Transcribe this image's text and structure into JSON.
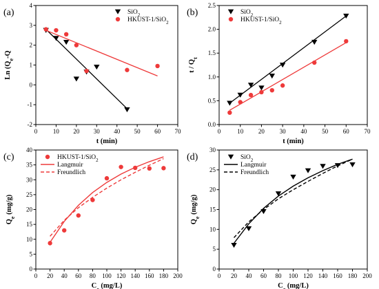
{
  "chart_data": [
    {
      "panel_label": "(a)",
      "type": "scatter",
      "xlabel": "t (min)",
      "ylabel": "Ln (Qe-Qt)",
      "ylabel_parts": [
        "Ln (Q",
        "e",
        "-Q",
        "t",
        ")"
      ],
      "xlim": [
        0,
        70
      ],
      "ylim": [
        -2,
        4
      ],
      "xticks": [
        0,
        10,
        20,
        30,
        40,
        50,
        60,
        70
      ],
      "yticks": [
        -2,
        -1,
        0,
        1,
        2,
        3,
        4
      ],
      "legend_position": "top-right",
      "series": [
        {
          "name": "SiO2",
          "name_parts": [
            "SiO",
            "2",
            ""
          ],
          "marker": "triangle-down",
          "color": "#000000",
          "x": [
            5,
            10,
            15,
            20,
            25,
            30,
            45
          ],
          "y": [
            2.75,
            2.35,
            2.15,
            0.3,
            0.65,
            0.9,
            -1.25
          ],
          "fit": [
            [
              5,
              2.8
            ],
            [
              45,
              -1.2
            ]
          ]
        },
        {
          "name": "HKUST-1/SiO2",
          "name_parts": [
            "HKUST-1/SiO",
            "2",
            ""
          ],
          "marker": "circle",
          "color": "#ee3a3a",
          "x": [
            5,
            10,
            15,
            20,
            25,
            45,
            60
          ],
          "y": [
            2.8,
            2.75,
            2.55,
            2.0,
            0.7,
            0.75,
            0.95
          ],
          "fit": [
            [
              5,
              2.75
            ],
            [
              60,
              0.45
            ]
          ]
        }
      ]
    },
    {
      "panel_label": "(b)",
      "type": "scatter",
      "xlabel": "t (min)",
      "ylabel": "t / Qt",
      "ylabel_parts": [
        "t / Q",
        "t",
        ""
      ],
      "xlim": [
        0,
        70
      ],
      "ylim": [
        0,
        2.5
      ],
      "xticks": [
        0,
        10,
        20,
        30,
        40,
        50,
        60,
        70
      ],
      "yticks": [
        0.0,
        0.5,
        1.0,
        1.5,
        2.0,
        2.5
      ],
      "ytick_labels": [
        "0.0",
        "0.5",
        "1.0",
        "1.5",
        "2.0",
        "2.5"
      ],
      "legend_position": "top-left",
      "series": [
        {
          "name": "SiO2",
          "name_parts": [
            "SiO",
            "2",
            ""
          ],
          "marker": "triangle-down",
          "color": "#000000",
          "x": [
            5,
            10,
            15,
            20,
            25,
            30,
            45,
            60
          ],
          "y": [
            0.45,
            0.62,
            0.83,
            0.77,
            1.02,
            1.25,
            1.73,
            2.28
          ],
          "fit": [
            [
              5,
              0.45
            ],
            [
              60,
              2.28
            ]
          ]
        },
        {
          "name": "HKUST-1/SiO2",
          "name_parts": [
            "HKUST-1/SiO",
            "2",
            ""
          ],
          "marker": "circle",
          "color": "#ee3a3a",
          "x": [
            5,
            10,
            15,
            20,
            25,
            30,
            45,
            60
          ],
          "y": [
            0.25,
            0.47,
            0.62,
            0.68,
            0.72,
            0.82,
            1.3,
            1.75
          ],
          "fit": [
            [
              5,
              0.3
            ],
            [
              60,
              1.72
            ]
          ]
        }
      ]
    },
    {
      "panel_label": "(c)",
      "type": "scatter",
      "xlabel": "Ce (mg/L)",
      "xlabel_parts": [
        "C",
        "e",
        " (mg/L)"
      ],
      "ylabel": "Qe (mg/g)",
      "ylabel_parts": [
        "Q",
        "e",
        " (mg/g)"
      ],
      "xlim": [
        0,
        200
      ],
      "ylim": [
        0,
        40
      ],
      "xticks": [
        0,
        20,
        40,
        60,
        80,
        100,
        120,
        140,
        160,
        180,
        200
      ],
      "yticks": [
        0,
        5,
        10,
        15,
        20,
        25,
        30,
        35,
        40
      ],
      "legend_position": "top-left",
      "series": [
        {
          "name": "HKUST-1/SiO2",
          "name_parts": [
            "HKUST-1/SiO",
            "2",
            ""
          ],
          "marker": "circle",
          "color": "#ee3a3a",
          "x": [
            20,
            40,
            60,
            80,
            100,
            120,
            140,
            160,
            180
          ],
          "y": [
            8.7,
            13.0,
            18.0,
            23.2,
            30.5,
            34.3,
            34.0,
            33.8,
            33.9
          ]
        },
        {
          "name": "Langmuir",
          "line": "solid",
          "color": "#ee3a3a",
          "x": [
            20,
            40,
            60,
            80,
            100,
            120,
            140,
            160,
            180
          ],
          "y": [
            9.0,
            16.0,
            21.4,
            25.7,
            29.1,
            31.9,
            34.2,
            36.1,
            37.7
          ]
        },
        {
          "name": "Freundlich",
          "line": "dashed",
          "color": "#ee3a3a",
          "x": [
            20,
            40,
            60,
            80,
            100,
            120,
            140,
            160,
            180
          ],
          "y": [
            11.0,
            16.4,
            20.6,
            24.1,
            27.2,
            30.0,
            32.5,
            34.9,
            37.1
          ]
        }
      ]
    },
    {
      "panel_label": "(d)",
      "type": "scatter",
      "xlabel": "Ce (mg/L)",
      "xlabel_parts": [
        "C",
        "e",
        " (mg/L)"
      ],
      "ylabel": "Qe (mg/g)",
      "ylabel_parts": [
        "Q",
        "e",
        " (mg/g)"
      ],
      "xlim": [
        0,
        200
      ],
      "ylim": [
        0,
        30
      ],
      "xticks": [
        0,
        20,
        40,
        60,
        80,
        100,
        120,
        140,
        160,
        180,
        200
      ],
      "yticks": [
        0,
        5,
        10,
        15,
        20,
        25,
        30
      ],
      "legend_position": "top-left",
      "series": [
        {
          "name": "SiO2",
          "name_parts": [
            "SiO",
            "2",
            ""
          ],
          "marker": "triangle-down",
          "color": "#000000",
          "x": [
            20,
            40,
            60,
            80,
            100,
            120,
            140,
            160,
            180
          ],
          "y": [
            6.0,
            10.2,
            14.5,
            19.0,
            23.2,
            24.8,
            25.9,
            26.1,
            26.3
          ]
        },
        {
          "name": "Langmuir",
          "line": "solid",
          "color": "#000000",
          "x": [
            20,
            40,
            60,
            80,
            100,
            120,
            140,
            160,
            180
          ],
          "y": [
            6.5,
            11.4,
            15.3,
            18.4,
            20.9,
            23.0,
            24.8,
            26.4,
            27.7
          ]
        },
        {
          "name": "Freundlich",
          "line": "dashed",
          "color": "#000000",
          "x": [
            20,
            40,
            60,
            80,
            100,
            120,
            140,
            160,
            180
          ],
          "y": [
            7.9,
            11.9,
            15.0,
            17.7,
            20.0,
            22.1,
            24.1,
            26.0,
            27.7
          ]
        }
      ]
    }
  ]
}
